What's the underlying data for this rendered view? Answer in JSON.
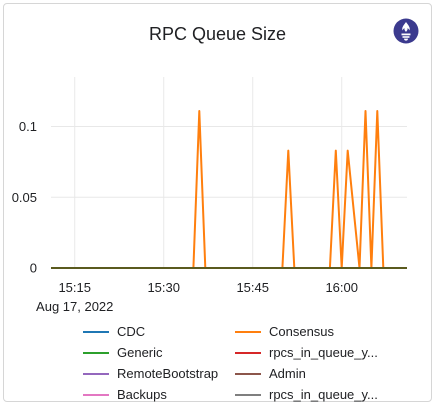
{
  "panel": {
    "title": "RPC Queue Size",
    "logo_icon": "prometheus-logo-icon"
  },
  "colors": {
    "grid": "#e8e8e8",
    "CDC": "#1f77b4",
    "Consensus": "#ff7f0e",
    "Generic": "#2ca02c",
    "rpcs_in_queue_y1": "#d62728",
    "RemoteBootstrap": "#9467bd",
    "Admin": "#8c564b",
    "Backups": "#e377c2",
    "rpcs_in_queue_y2": "#7f7f7f",
    "brand": "#3b3a8e"
  },
  "chart_data": {
    "type": "line",
    "title": "RPC Queue Size",
    "xlabel": "",
    "ylabel": "",
    "x_ticks": [
      "15:15",
      "15:30",
      "15:45",
      "16:00"
    ],
    "x_sublabel": "Aug 17, 2022",
    "xlim": [
      "15:11",
      "16:11"
    ],
    "y_ticks": [
      "0",
      "0.05",
      "0.1"
    ],
    "ylim": [
      0,
      0.135
    ],
    "grid": true,
    "legend_position": "bottom",
    "series": [
      {
        "name": "CDC",
        "x": [
          "15:11",
          "16:11"
        ],
        "y": [
          0,
          0
        ]
      },
      {
        "name": "Consensus",
        "x": [
          "15:11",
          "15:35",
          "15:36",
          "15:37",
          "15:50",
          "15:51",
          "15:52",
          "15:58",
          "15:59",
          "16:00",
          "16:01",
          "16:03",
          "16:04",
          "16:05",
          "16:06",
          "16:07",
          "16:11"
        ],
        "y": [
          0,
          0,
          0.111,
          0,
          0,
          0.083,
          0,
          0,
          0.083,
          0,
          0.083,
          0,
          0.111,
          0,
          0.111,
          0,
          0
        ]
      },
      {
        "name": "Generic",
        "x": [
          "15:11",
          "16:11"
        ],
        "y": [
          0,
          0
        ]
      },
      {
        "name": "rpcs_in_queue_y...",
        "x": [
          "15:11",
          "16:11"
        ],
        "y": [
          0,
          0
        ]
      },
      {
        "name": "RemoteBootstrap",
        "x": [
          "15:11",
          "16:11"
        ],
        "y": [
          0,
          0
        ]
      },
      {
        "name": "Admin",
        "x": [
          "15:11",
          "16:11"
        ],
        "y": [
          0,
          0
        ]
      },
      {
        "name": "Backups",
        "x": [
          "15:11",
          "16:11"
        ],
        "y": [
          0,
          0
        ]
      },
      {
        "name": "rpcs_in_queue_y...",
        "x": [
          "15:11",
          "16:11"
        ],
        "y": [
          0,
          0
        ]
      }
    ]
  },
  "legend": [
    {
      "label": "CDC",
      "color_key": "CDC"
    },
    {
      "label": "Consensus",
      "color_key": "Consensus"
    },
    {
      "label": "Generic",
      "color_key": "Generic"
    },
    {
      "label": "rpcs_in_queue_y...",
      "color_key": "rpcs_in_queue_y1"
    },
    {
      "label": "RemoteBootstrap",
      "color_key": "RemoteBootstrap"
    },
    {
      "label": "Admin",
      "color_key": "Admin"
    },
    {
      "label": "Backups",
      "color_key": "Backups"
    },
    {
      "label": "rpcs_in_queue_y...",
      "color_key": "rpcs_in_queue_y2"
    }
  ]
}
